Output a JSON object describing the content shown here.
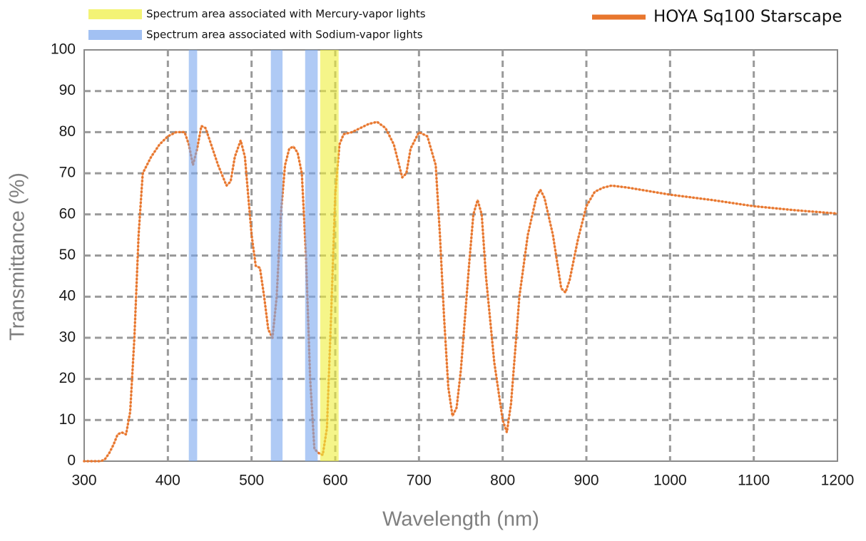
{
  "chart_data": {
    "type": "line",
    "xlabel": "Wavelength (nm)",
    "ylabel": "Transmittance (%)",
    "xlim": [
      300,
      1200
    ],
    "ylim": [
      0,
      100
    ],
    "xticks": [
      300,
      400,
      500,
      600,
      700,
      800,
      900,
      1000,
      1100,
      1200
    ],
    "yticks": [
      0,
      10,
      20,
      30,
      40,
      50,
      60,
      70,
      80,
      90,
      100
    ],
    "grid": true,
    "bands": [
      {
        "name": "Spectrum area associated with Mercury-vapor lights",
        "color": "#eeee3a",
        "ranges": [
          [
            582,
            604
          ]
        ]
      },
      {
        "name": "Spectrum area associated with Sodium-vapor lights",
        "color": "#7aa6ee",
        "ranges": [
          [
            425,
            435
          ],
          [
            523,
            537
          ],
          [
            564,
            579
          ]
        ]
      }
    ],
    "x": [
      300,
      310,
      320,
      325,
      330,
      335,
      340,
      345,
      350,
      355,
      360,
      365,
      370,
      380,
      390,
      400,
      410,
      420,
      425,
      430,
      435,
      440,
      445,
      450,
      460,
      470,
      475,
      480,
      487,
      492,
      500,
      505,
      510,
      515,
      520,
      525,
      530,
      535,
      540,
      545,
      550,
      555,
      560,
      565,
      570,
      575,
      580,
      585,
      590,
      595,
      600,
      605,
      610,
      620,
      630,
      640,
      650,
      660,
      670,
      680,
      685,
      690,
      700,
      710,
      720,
      725,
      730,
      735,
      740,
      745,
      750,
      760,
      765,
      770,
      775,
      780,
      790,
      800,
      805,
      810,
      820,
      830,
      840,
      845,
      850,
      860,
      870,
      875,
      880,
      890,
      900,
      910,
      920,
      930,
      950,
      1000,
      1050,
      1100,
      1150,
      1200
    ],
    "series": [
      {
        "name": "HOYA Sq100 Starscape",
        "color": "#e8762d",
        "values": [
          0,
          0,
          0,
          0.5,
          2,
          4,
          6.5,
          7,
          6.5,
          12,
          30,
          55,
          70,
          74,
          77,
          79,
          80,
          80,
          77,
          72,
          76,
          81.5,
          81,
          78,
          72,
          67,
          68,
          74,
          78,
          74,
          55,
          47.5,
          47,
          40,
          32,
          30,
          40,
          60,
          72,
          76,
          76.5,
          75,
          70,
          50,
          20,
          3,
          2,
          1.5,
          8,
          35,
          65,
          77,
          79.5,
          80,
          81,
          82,
          82.5,
          81,
          77,
          69,
          70,
          76,
          80,
          79,
          72,
          55,
          35,
          18,
          11,
          13,
          22,
          48,
          60,
          63.5,
          60,
          45,
          24,
          10,
          7,
          14,
          40,
          55,
          64,
          66,
          64,
          55,
          42,
          41,
          44,
          54,
          62,
          65.5,
          66.5,
          67,
          66.5,
          64.8,
          63.5,
          62,
          61,
          60.2
        ]
      }
    ]
  }
}
